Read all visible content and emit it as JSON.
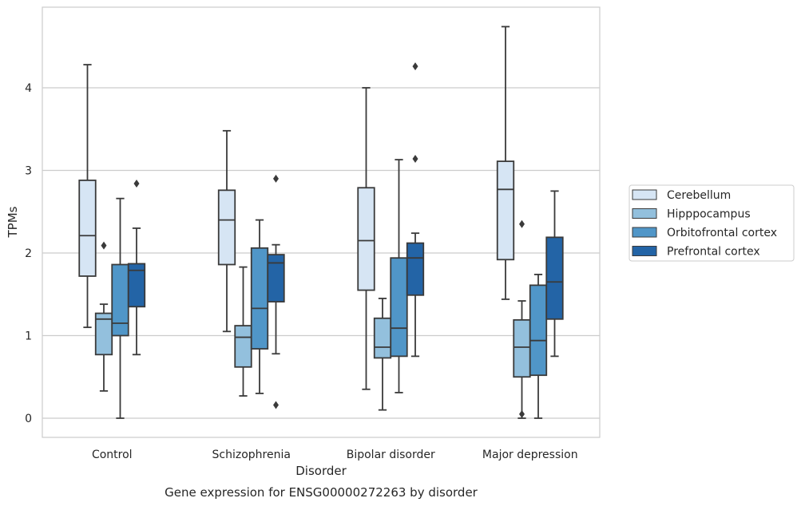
{
  "chart_data": {
    "type": "box",
    "title": "",
    "caption": "Gene expression for ENSG00000272263 by disorder",
    "xlabel": "Disorder",
    "ylabel": "TPMs",
    "ylim": [
      -0.23,
      4.98
    ],
    "yticks": [
      0,
      1,
      2,
      3,
      4
    ],
    "grid": "horizontal",
    "legend_position": "right",
    "categories": [
      "Control",
      "Schizophrenia",
      "Bipolar disorder",
      "Major depression"
    ],
    "series": [
      {
        "name": "Cerebellum",
        "color": "#d6e5f4",
        "boxes": [
          {
            "whisker_low": 1.1,
            "q1": 1.72,
            "median": 2.21,
            "q3": 2.88,
            "whisker_high": 4.28,
            "outliers": []
          },
          {
            "whisker_low": 1.05,
            "q1": 1.86,
            "median": 2.4,
            "q3": 2.76,
            "whisker_high": 3.48,
            "outliers": []
          },
          {
            "whisker_low": 0.35,
            "q1": 1.55,
            "median": 2.15,
            "q3": 2.79,
            "whisker_high": 4.0,
            "outliers": []
          },
          {
            "whisker_low": 1.44,
            "q1": 1.92,
            "median": 2.77,
            "q3": 3.11,
            "whisker_high": 4.74,
            "outliers": []
          }
        ]
      },
      {
        "name": "Hipppocampus",
        "color": "#93c0dd",
        "boxes": [
          {
            "whisker_low": 0.33,
            "q1": 0.77,
            "median": 1.2,
            "q3": 1.27,
            "whisker_high": 1.38,
            "outliers": [
              2.09
            ]
          },
          {
            "whisker_low": 0.27,
            "q1": 0.62,
            "median": 0.98,
            "q3": 1.12,
            "whisker_high": 1.83,
            "outliers": []
          },
          {
            "whisker_low": 0.1,
            "q1": 0.73,
            "median": 0.86,
            "q3": 1.21,
            "whisker_high": 1.45,
            "outliers": []
          },
          {
            "whisker_low": 0.0,
            "q1": 0.5,
            "median": 0.86,
            "q3": 1.19,
            "whisker_high": 1.42,
            "outliers": [
              0.05,
              2.35
            ]
          }
        ]
      },
      {
        "name": "Orbitofrontal cortex",
        "color": "#5096c8",
        "boxes": [
          {
            "whisker_low": 0.0,
            "q1": 1.0,
            "median": 1.15,
            "q3": 1.86,
            "whisker_high": 2.66,
            "outliers": []
          },
          {
            "whisker_low": 0.3,
            "q1": 0.84,
            "median": 1.33,
            "q3": 2.06,
            "whisker_high": 2.4,
            "outliers": []
          },
          {
            "whisker_low": 0.31,
            "q1": 0.75,
            "median": 1.09,
            "q3": 1.94,
            "whisker_high": 3.13,
            "outliers": []
          },
          {
            "whisker_low": 0.0,
            "q1": 0.52,
            "median": 0.94,
            "q3": 1.61,
            "whisker_high": 1.74,
            "outliers": []
          }
        ]
      },
      {
        "name": "Prefrontal cortex",
        "color": "#2364a6",
        "boxes": [
          {
            "whisker_low": 0.77,
            "q1": 1.35,
            "median": 1.79,
            "q3": 1.87,
            "whisker_high": 2.3,
            "outliers": [
              2.84
            ]
          },
          {
            "whisker_low": 0.78,
            "q1": 1.41,
            "median": 1.88,
            "q3": 1.98,
            "whisker_high": 2.1,
            "outliers": [
              2.9,
              0.16
            ]
          },
          {
            "whisker_low": 0.75,
            "q1": 1.49,
            "median": 1.94,
            "q3": 2.12,
            "whisker_high": 2.24,
            "outliers": [
              4.26,
              3.14
            ]
          },
          {
            "whisker_low": 0.75,
            "q1": 1.2,
            "median": 1.65,
            "q3": 2.19,
            "whisker_high": 2.75,
            "outliers": []
          }
        ]
      }
    ]
  }
}
